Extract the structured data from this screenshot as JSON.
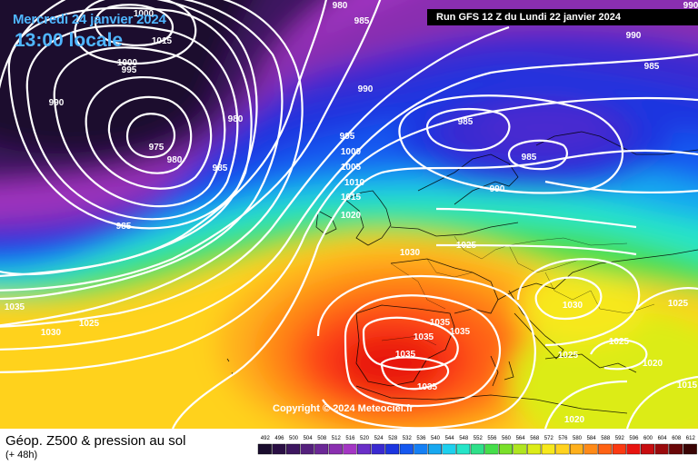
{
  "header": {
    "date": "Mercredi 24 janvier 2024",
    "local_time": "13:00 locale",
    "run": "Run GFS 12 Z du Lundi 22 janvier 2024"
  },
  "copyright": "Copyright © 2024 Meteociel.fr",
  "footer": {
    "title": "Géop. Z500 & pression au sol",
    "lead": "(+ 48h)"
  },
  "legend": {
    "values": [
      "492",
      "496",
      "500",
      "504",
      "508",
      "512",
      "516",
      "520",
      "524",
      "528",
      "532",
      "536",
      "540",
      "544",
      "548",
      "552",
      "556",
      "560",
      "564",
      "568",
      "572",
      "576",
      "580",
      "584",
      "588",
      "592",
      "596",
      "600",
      "604",
      "608",
      "612"
    ],
    "colors": [
      "#1a0d2e",
      "#2a0f44",
      "#3d1660",
      "#54207c",
      "#6b2896",
      "#8a2fb0",
      "#a436c4",
      "#6a2fc8",
      "#3a2ad0",
      "#1c35e0",
      "#1558f0",
      "#1580f5",
      "#18a8f0",
      "#1ed0ee",
      "#25e5c8",
      "#2fe08a",
      "#45de4a",
      "#7ae02a",
      "#b0e520",
      "#dcec18",
      "#f7e81c",
      "#ffd21e",
      "#ffb01c",
      "#ff8a18",
      "#ff6214",
      "#fb3a12",
      "#e81410",
      "#c80d10",
      "#9a0a0c",
      "#6a0708",
      "#3a0404"
    ]
  },
  "isobar_labels": [
    "1000",
    "1015",
    "1000",
    "995",
    "990",
    "975",
    "980",
    "980",
    "985",
    "985",
    "980",
    "985",
    "990",
    "995",
    "1000",
    "1005",
    "1010",
    "1015",
    "1020",
    "1025",
    "1030",
    "1030",
    "1035",
    "1035",
    "1035",
    "1035",
    "1035",
    "1035",
    "1030",
    "1025",
    "1025",
    "1025",
    "1025",
    "1020",
    "1015",
    "1020",
    "985",
    "985",
    "990",
    "990",
    "985",
    "990"
  ]
}
